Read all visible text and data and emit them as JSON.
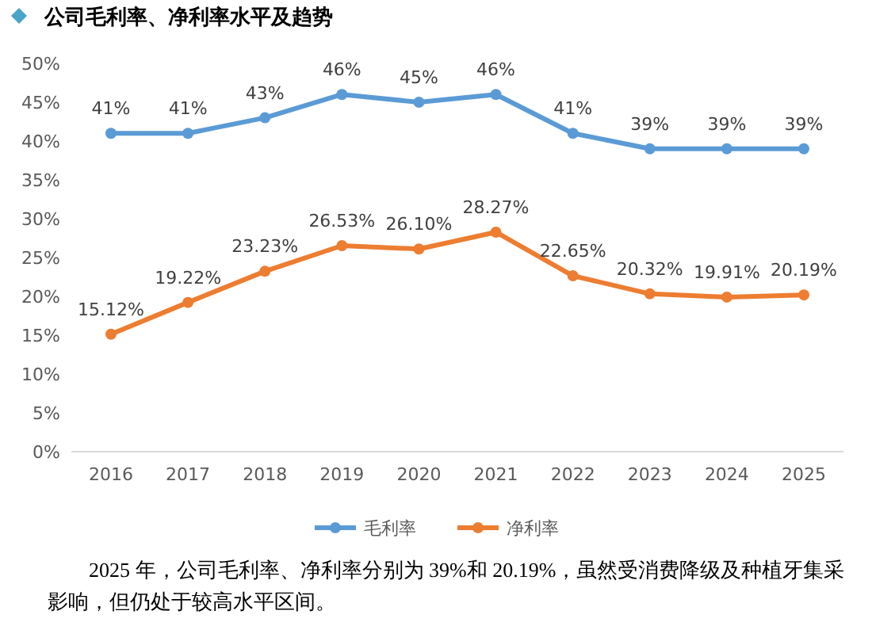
{
  "chart_data": {
    "type": "line",
    "title": "公司毛利率、净利率水平及趋势",
    "categories": [
      "2016",
      "2017",
      "2018",
      "2019",
      "2020",
      "2021",
      "2022",
      "2023",
      "2024",
      "2025"
    ],
    "series": [
      {
        "name": "毛利率",
        "color": "#5b9bd5",
        "values": [
          41,
          41,
          43,
          46,
          45,
          46,
          41,
          39,
          39,
          39
        ],
        "value_labels": [
          "41%",
          "41%",
          "43%",
          "46%",
          "45%",
          "46%",
          "41%",
          "39%",
          "39%",
          "39%"
        ]
      },
      {
        "name": "净利率",
        "color": "#ed7d31",
        "values": [
          15.12,
          19.22,
          23.23,
          26.53,
          26.1,
          28.27,
          22.65,
          20.32,
          19.91,
          20.19
        ],
        "value_labels": [
          "15.12%",
          "19.22%",
          "23.23%",
          "26.53%",
          "26.10%",
          "28.27%",
          "22.65%",
          "20.32%",
          "19.91%",
          "20.19%"
        ]
      }
    ],
    "ylim": [
      0,
      50
    ],
    "yticks": [
      {
        "value": 0,
        "label": "0%"
      },
      {
        "value": 5,
        "label": "5%"
      },
      {
        "value": 10,
        "label": "10%"
      },
      {
        "value": 15,
        "label": "15%"
      },
      {
        "value": 20,
        "label": "20%"
      },
      {
        "value": 25,
        "label": "25%"
      },
      {
        "value": 30,
        "label": "30%"
      },
      {
        "value": 35,
        "label": "35%"
      },
      {
        "value": 40,
        "label": "40%"
      },
      {
        "value": 45,
        "label": "45%"
      },
      {
        "value": 50,
        "label": "50%"
      }
    ],
    "grid": false,
    "legend": "bottom",
    "marker": "circle",
    "line_style": "solid",
    "annotations": [
      "2025 年，公司毛利率、净利率分别为 39%和 20.19%，虽然受消费降级及种植牙集采影响，但仍处于较高水平区间。"
    ]
  }
}
